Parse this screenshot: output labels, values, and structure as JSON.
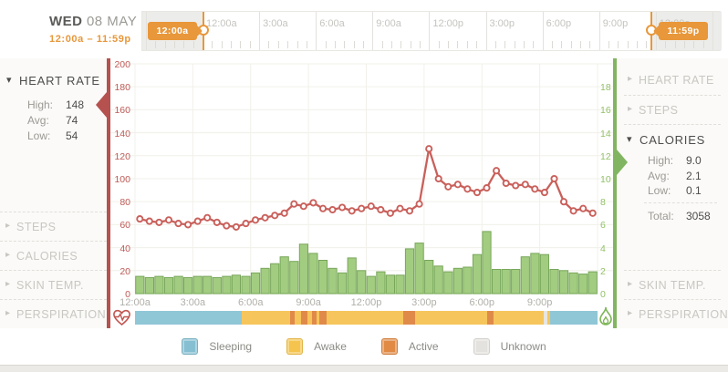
{
  "header": {
    "day": "WED",
    "date": "08 MAY",
    "range": "12:00a – 11:59p",
    "timeline": {
      "start_badge": "12:00a",
      "end_badge": "11:59p",
      "tick_hours": [
        0,
        3,
        6,
        9,
        12,
        15,
        18,
        21,
        24
      ],
      "tick_labels": [
        "12:00a",
        "3:00a",
        "6:00a",
        "9:00a",
        "12:00p",
        "3:00p",
        "6:00p",
        "9:00p",
        "12:00a"
      ]
    }
  },
  "left_sidebar": {
    "heart_rate": {
      "label": "HEART RATE",
      "high_label": "High:",
      "high": "148",
      "avg_label": "Avg:",
      "avg": "74",
      "low_label": "Low:",
      "low": "54"
    },
    "items": [
      {
        "label": "STEPS"
      },
      {
        "label": "CALORIES"
      },
      {
        "label": "SKIN TEMP."
      },
      {
        "label": "PERSPIRATION"
      }
    ]
  },
  "right_sidebar": {
    "top_items": [
      {
        "label": "HEART RATE"
      },
      {
        "label": "STEPS"
      }
    ],
    "calories": {
      "label": "CALORIES",
      "high_label": "High:",
      "high": "9.0",
      "avg_label": "Avg:",
      "avg": "2.1",
      "low_label": "Low:",
      "low": "0.1",
      "total_label": "Total:",
      "total": "3058"
    },
    "bottom_items": [
      {
        "label": "SKIN TEMP."
      },
      {
        "label": "PERSPIRATION"
      }
    ]
  },
  "chart_data": {
    "type": "line+bar",
    "interval_minutes": 30,
    "x_tick_hours": [
      0,
      3,
      6,
      9,
      12,
      15,
      18,
      21
    ],
    "x_tick_labels": [
      "12:00a",
      "3:00a",
      "6:00a",
      "9:00a",
      "12:00p",
      "3:00p",
      "6:00p",
      "9:00p"
    ],
    "left_axis": {
      "name": "heart-rate",
      "ticks": [
        0,
        20,
        40,
        60,
        80,
        100,
        120,
        140,
        160,
        180,
        200
      ],
      "range": [
        0,
        196
      ],
      "color": "#bd5a56"
    },
    "right_axis": {
      "name": "calories",
      "ticks": [
        0,
        2,
        4,
        6,
        8,
        10,
        12,
        14,
        16,
        18
      ],
      "range": [
        0,
        19.6
      ],
      "color": "#93c169"
    },
    "grid": true,
    "series": [
      {
        "name": "heart_rate",
        "type": "line",
        "axis": "left",
        "color": "#c9605b",
        "values": [
          65,
          63,
          62,
          64,
          61,
          60,
          63,
          66,
          62,
          59,
          58,
          61,
          64,
          66,
          68,
          70,
          78,
          76,
          79,
          74,
          73,
          75,
          72,
          74,
          76,
          73,
          70,
          74,
          72,
          78,
          126,
          100,
          93,
          95,
          91,
          88,
          92,
          107,
          96,
          94,
          95,
          91,
          88,
          100,
          80,
          72,
          74,
          70
        ]
      },
      {
        "name": "calories",
        "type": "bar",
        "axis": "right",
        "color": "#a2cd81",
        "stroke": "#78a65a",
        "values": [
          1.5,
          1.4,
          1.5,
          1.4,
          1.5,
          1.4,
          1.5,
          1.5,
          1.4,
          1.5,
          1.6,
          1.5,
          1.8,
          2.2,
          2.6,
          3.2,
          2.8,
          4.3,
          3.5,
          2.9,
          2.2,
          1.8,
          3.1,
          2.0,
          1.5,
          1.9,
          1.6,
          1.6,
          3.9,
          4.4,
          2.9,
          2.4,
          1.9,
          2.2,
          2.3,
          3.4,
          5.4,
          2.1,
          2.1,
          2.1,
          3.2,
          3.5,
          3.4,
          2.1,
          2.0,
          1.8,
          1.7,
          1.9
        ]
      }
    ],
    "activity_band": {
      "segments": [
        {
          "state": "sleeping",
          "from": 0.0,
          "to": 0.23
        },
        {
          "state": "awake",
          "from": 0.23,
          "to": 0.336
        },
        {
          "state": "active",
          "from": 0.336,
          "to": 0.345
        },
        {
          "state": "awake",
          "from": 0.345,
          "to": 0.358
        },
        {
          "state": "active",
          "from": 0.358,
          "to": 0.372
        },
        {
          "state": "awake",
          "from": 0.372,
          "to": 0.382
        },
        {
          "state": "active",
          "from": 0.382,
          "to": 0.392
        },
        {
          "state": "awake",
          "from": 0.392,
          "to": 0.398
        },
        {
          "state": "active",
          "from": 0.398,
          "to": 0.415
        },
        {
          "state": "awake",
          "from": 0.415,
          "to": 0.58
        },
        {
          "state": "active",
          "from": 0.58,
          "to": 0.606
        },
        {
          "state": "awake",
          "from": 0.606,
          "to": 0.762
        },
        {
          "state": "active",
          "from": 0.762,
          "to": 0.776
        },
        {
          "state": "awake",
          "from": 0.776,
          "to": 0.884
        },
        {
          "state": "unknown",
          "from": 0.884,
          "to": 0.892
        },
        {
          "state": "awake",
          "from": 0.892,
          "to": 0.898
        },
        {
          "state": "sleeping",
          "from": 0.898,
          "to": 1.0
        }
      ]
    }
  },
  "legend": {
    "items": [
      {
        "label": "Sleeping",
        "state": "sleeping",
        "color": "#85bfd1"
      },
      {
        "label": "Awake",
        "state": "awake",
        "color": "#f5c44e"
      },
      {
        "label": "Active",
        "state": "active",
        "color": "#e08a45"
      },
      {
        "label": "Unknown",
        "state": "unknown",
        "color": "#e3e2de"
      }
    ]
  },
  "colors": {
    "accent_orange": "#e8973a",
    "heart_red": "#b5524f",
    "line_red": "#c9605b",
    "calorie_green_border": "#82b561",
    "bar_fill": "#a2cd81",
    "bar_stroke": "#78a65a",
    "band": {
      "sleeping": "#8fc7d6",
      "awake": "#f6c55c",
      "active": "#e08a4a",
      "unknown": "#e6e5e0"
    },
    "gridline": "#f1f0ea"
  },
  "icons": {
    "heart_pulse": "heart-pulse-icon",
    "flame": "flame-icon"
  }
}
